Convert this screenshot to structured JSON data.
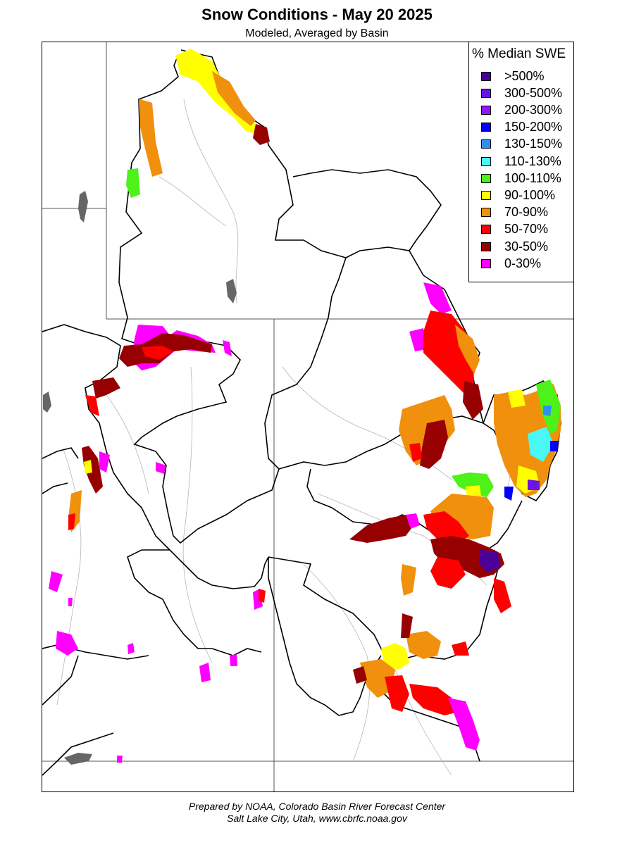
{
  "title": "Snow Conditions - May 20 2025",
  "subtitle": "Modeled, Averaged by Basin",
  "legend": {
    "title": "% Median SWE",
    "items": [
      {
        "label": ">500%",
        "color": "#4b0096"
      },
      {
        "label": "300-500%",
        "color": "#6a14e6"
      },
      {
        "label": "200-300%",
        "color": "#9314f5"
      },
      {
        "label": "150-200%",
        "color": "#0000ff"
      },
      {
        "label": "130-150%",
        "color": "#2f8ff0"
      },
      {
        "label": "110-130%",
        "color": "#49f8f5"
      },
      {
        "label": "100-110%",
        "color": "#4cf218"
      },
      {
        "label": "90-100%",
        "color": "#ffff00"
      },
      {
        "label": "70-90%",
        "color": "#f0900c"
      },
      {
        "label": "50-70%",
        "color": "#ff0000"
      },
      {
        "label": "30-50%",
        "color": "#960000"
      },
      {
        "label": "0-30%",
        "color": "#ff00ff"
      }
    ]
  },
  "footer": {
    "line1": "Prepared by NOAA, Colorado Basin River Forecast Center",
    "line2": "Salt Lake City, Utah, www.cbrfc.noaa.gov"
  }
}
